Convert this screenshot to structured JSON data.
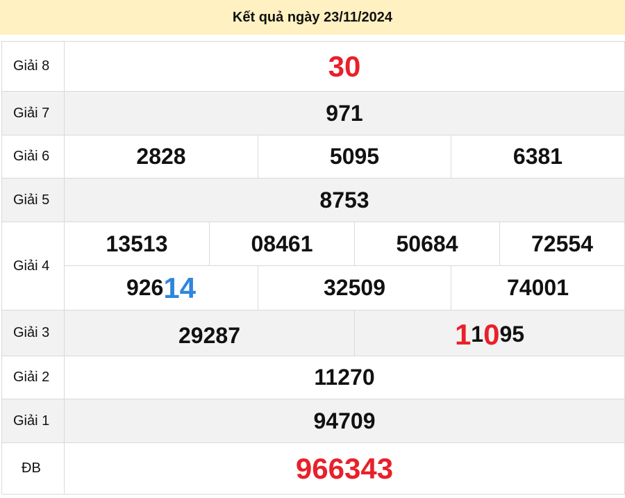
{
  "header": {
    "title": "Kết quả ngày 23/11/2024",
    "bg": "#fff1c1"
  },
  "colors": {
    "red": "#e8202a",
    "blue": "#2f86dc"
  },
  "rows": {
    "g8": {
      "label": "Giải 8",
      "values": [
        "30"
      ]
    },
    "g7": {
      "label": "Giải 7",
      "values": [
        "971"
      ]
    },
    "g6": {
      "label": "Giải 6",
      "values": [
        "2828",
        "5095",
        "6381"
      ]
    },
    "g5": {
      "label": "Giải 5",
      "values": [
        "8753"
      ]
    },
    "g4": {
      "label": "Giải 4",
      "values": [
        "13513",
        "08461",
        "50684",
        "72554",
        {
          "plain": "926",
          "highlight": "14"
        },
        "32509",
        "74001"
      ]
    },
    "g3": {
      "label": "Giải 3",
      "values": [
        "29287",
        {
          "h1": "1",
          "p1": "1",
          "h2": "0",
          "p2": "95"
        }
      ]
    },
    "g2": {
      "label": "Giải 2",
      "values": [
        "11270"
      ]
    },
    "g1": {
      "label": "Giải 1",
      "values": [
        "94709"
      ]
    },
    "db": {
      "label": "ĐB",
      "values": [
        "966343"
      ]
    }
  }
}
